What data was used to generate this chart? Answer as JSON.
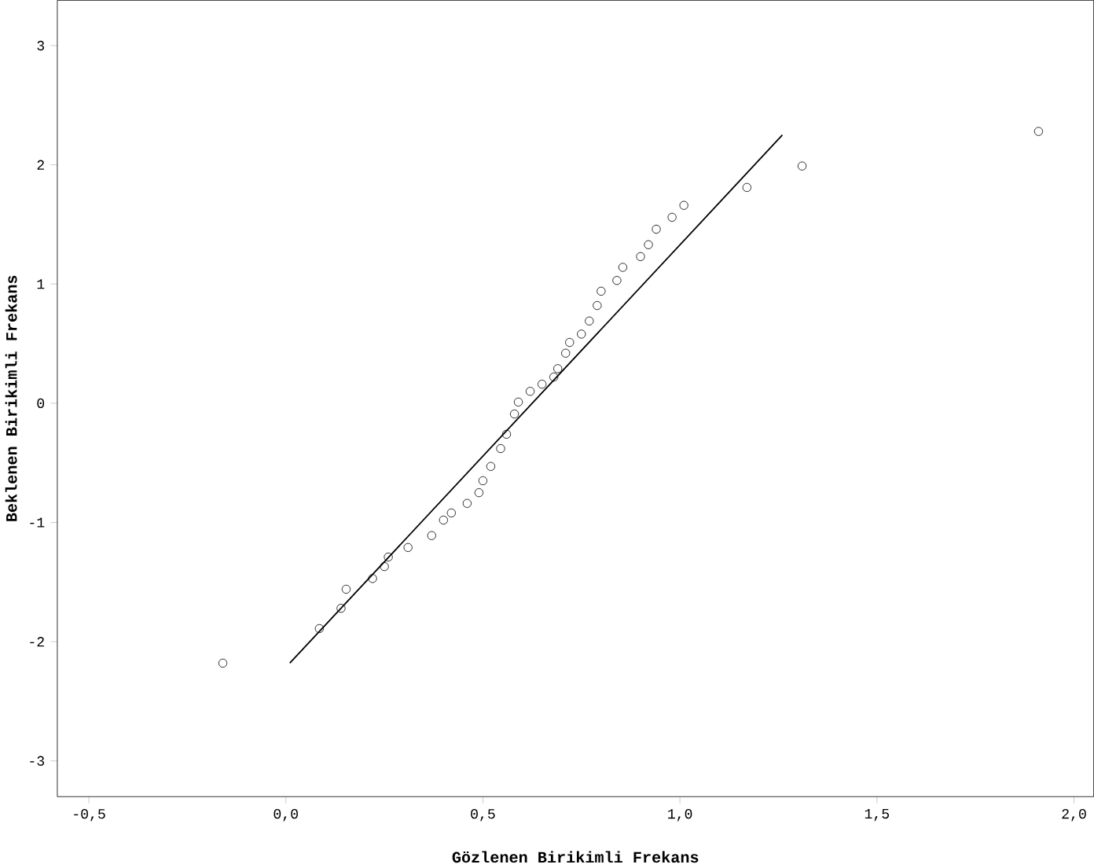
{
  "chart_data": {
    "type": "scatter",
    "xlabel": "Gözlenen Birikimli Frekans",
    "ylabel": "Beklenen Birikimli Frekans",
    "xlim": [
      -0.58,
      2.05
    ],
    "ylim": [
      -3.3,
      3.38
    ],
    "xticks": [
      {
        "value": -0.5,
        "label": "-0,5"
      },
      {
        "value": 0,
        "label": "0,0"
      },
      {
        "value": 0.5,
        "label": "0,5"
      },
      {
        "value": 1,
        "label": "1,0"
      },
      {
        "value": 1.5,
        "label": "1,5"
      },
      {
        "value": 2,
        "label": "2,0"
      }
    ],
    "yticks": [
      -3,
      -2,
      -1,
      0,
      1,
      2,
      3
    ],
    "grid": false,
    "marker": "circle",
    "series": [
      {
        "color": "#000000",
        "x": [
          -0.16,
          0.085,
          0.14,
          0.153,
          0.22,
          0.25,
          0.26,
          0.31,
          0.37,
          0.4,
          0.42,
          0.46,
          0.49,
          0.5,
          0.52,
          0.545,
          0.56,
          0.58,
          0.59,
          0.62,
          0.65,
          0.68,
          0.69,
          0.71,
          0.72,
          0.75,
          0.77,
          0.79,
          0.8,
          0.84,
          0.855,
          0.9,
          0.92,
          0.94,
          0.98,
          1.01,
          1.17,
          1.31,
          1.91
        ],
        "values": [
          -2.18,
          -1.89,
          -1.72,
          -1.56,
          -1.47,
          -1.37,
          -1.29,
          -1.21,
          -1.11,
          -0.98,
          -0.92,
          -0.84,
          -0.75,
          -0.65,
          -0.53,
          -0.38,
          -0.26,
          -0.09,
          0.01,
          0.1,
          0.16,
          0.22,
          0.29,
          0.42,
          0.51,
          0.58,
          0.69,
          0.82,
          0.94,
          1.03,
          1.14,
          1.23,
          1.33,
          1.46,
          1.56,
          1.66,
          1.81,
          1.99,
          2.28
        ]
      },
      {
        "type": "line",
        "color": "#000000",
        "marker": "none",
        "x": [
          0.01,
          1.26
        ],
        "values": [
          -2.18,
          2.25
        ]
      }
    ]
  }
}
